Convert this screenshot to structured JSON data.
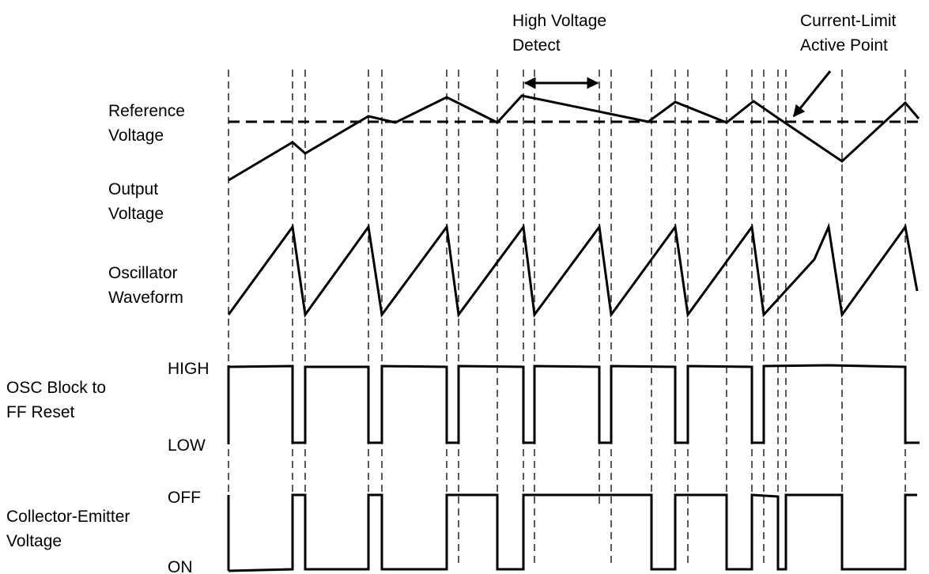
{
  "labels": {
    "reference_voltage": [
      "Reference",
      "Voltage"
    ],
    "output_voltage": [
      "Output",
      "Voltage"
    ],
    "oscillator_waveform": [
      "Oscillator",
      "Waveform"
    ],
    "osc_block": [
      "OSC Block to",
      "FF Reset"
    ],
    "collector_emitter": [
      "Collector-Emitter",
      "Voltage"
    ],
    "high": "HIGH",
    "low": "LOW",
    "off": "OFF",
    "on": "ON",
    "high_voltage_detect": [
      "High Voltage",
      "Detect"
    ],
    "current_limit": [
      "Current-Limit",
      "Active Point"
    ]
  }
}
